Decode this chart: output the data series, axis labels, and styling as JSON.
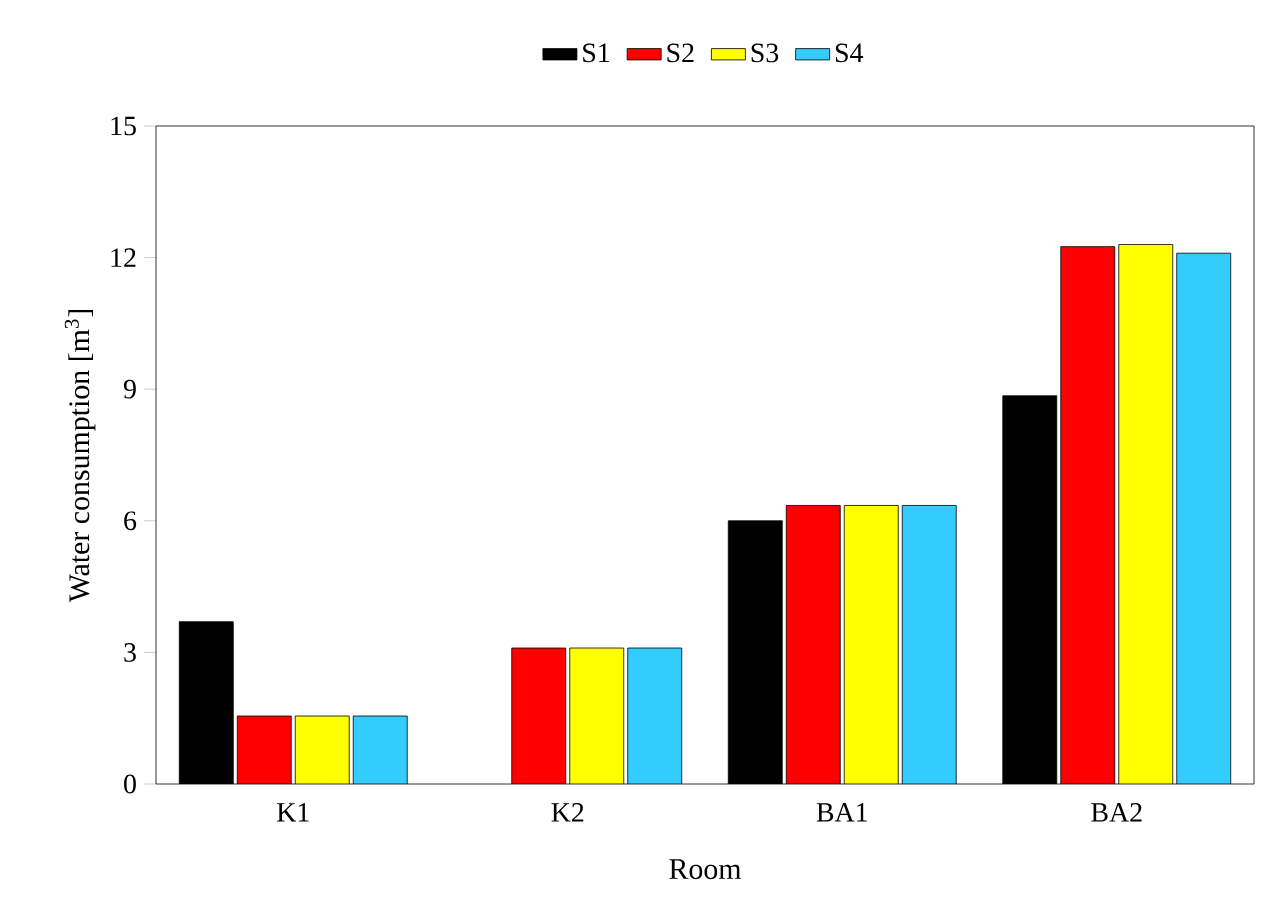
{
  "chart_data": {
    "type": "bar",
    "xlabel": "Room",
    "ylabel": "Water consumption [m$^{3}$]",
    "categories": [
      "K1",
      "K2",
      "BA1",
      "BA2"
    ],
    "series": [
      {
        "name": "S1",
        "color": "#000000",
        "values": [
          3.7,
          null,
          6.0,
          8.85
        ]
      },
      {
        "name": "S2",
        "color": "#ff0000",
        "values": [
          1.55,
          3.1,
          6.35,
          12.25
        ]
      },
      {
        "name": "S3",
        "color": "#ffff00",
        "values": [
          1.55,
          3.1,
          6.35,
          12.3
        ]
      },
      {
        "name": "S4",
        "color": "#33ccff",
        "values": [
          1.55,
          3.1,
          6.35,
          12.1
        ]
      }
    ],
    "ylim": [
      0,
      15
    ],
    "yticks": [
      0,
      3,
      6,
      9,
      12,
      15
    ],
    "legend": "top",
    "grid": false
  }
}
